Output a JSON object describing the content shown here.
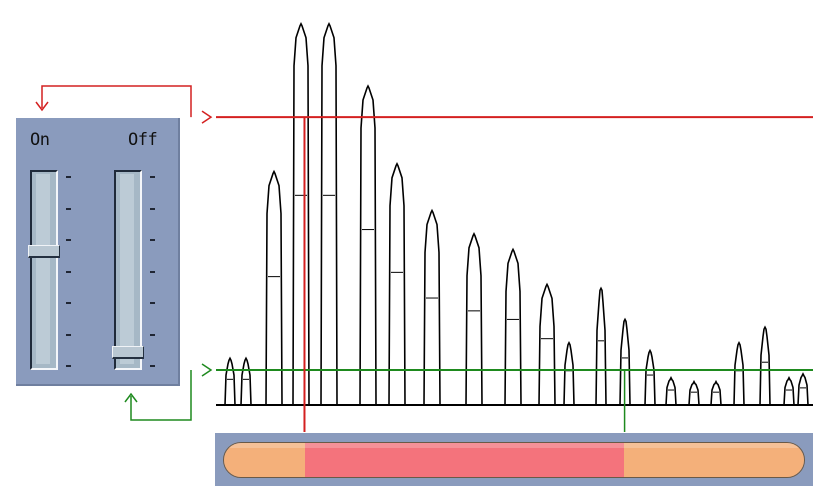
{
  "panel": {
    "on_label": "On",
    "off_label": "Off",
    "on_level": 0.6,
    "off_level": 0.05
  },
  "colors": {
    "on_threshold": "#d42020",
    "off_threshold": "#1e8a1e",
    "panel_bg": "#8a9bbd",
    "range_active": "#f4737c",
    "range_inactive": "#f4b07a"
  },
  "icons": {
    "on_connector": "arrow-connector-icon",
    "off_connector": "arrow-connector-icon"
  },
  "signal": {
    "peak_levels": [
      0.12,
      0.12,
      0.6,
      0.98,
      0.98,
      0.82,
      0.62,
      0.5,
      0.44,
      0.4,
      0.31,
      0.16,
      0.3,
      0.22,
      0.14,
      0.07,
      0.06,
      0.06,
      0.16,
      0.2,
      0.07,
      0.08
    ],
    "on_threshold_level": 0.74,
    "off_threshold_level": 0.09
  },
  "range": {
    "start_fraction": 0.14,
    "end_fraction": 0.69
  }
}
